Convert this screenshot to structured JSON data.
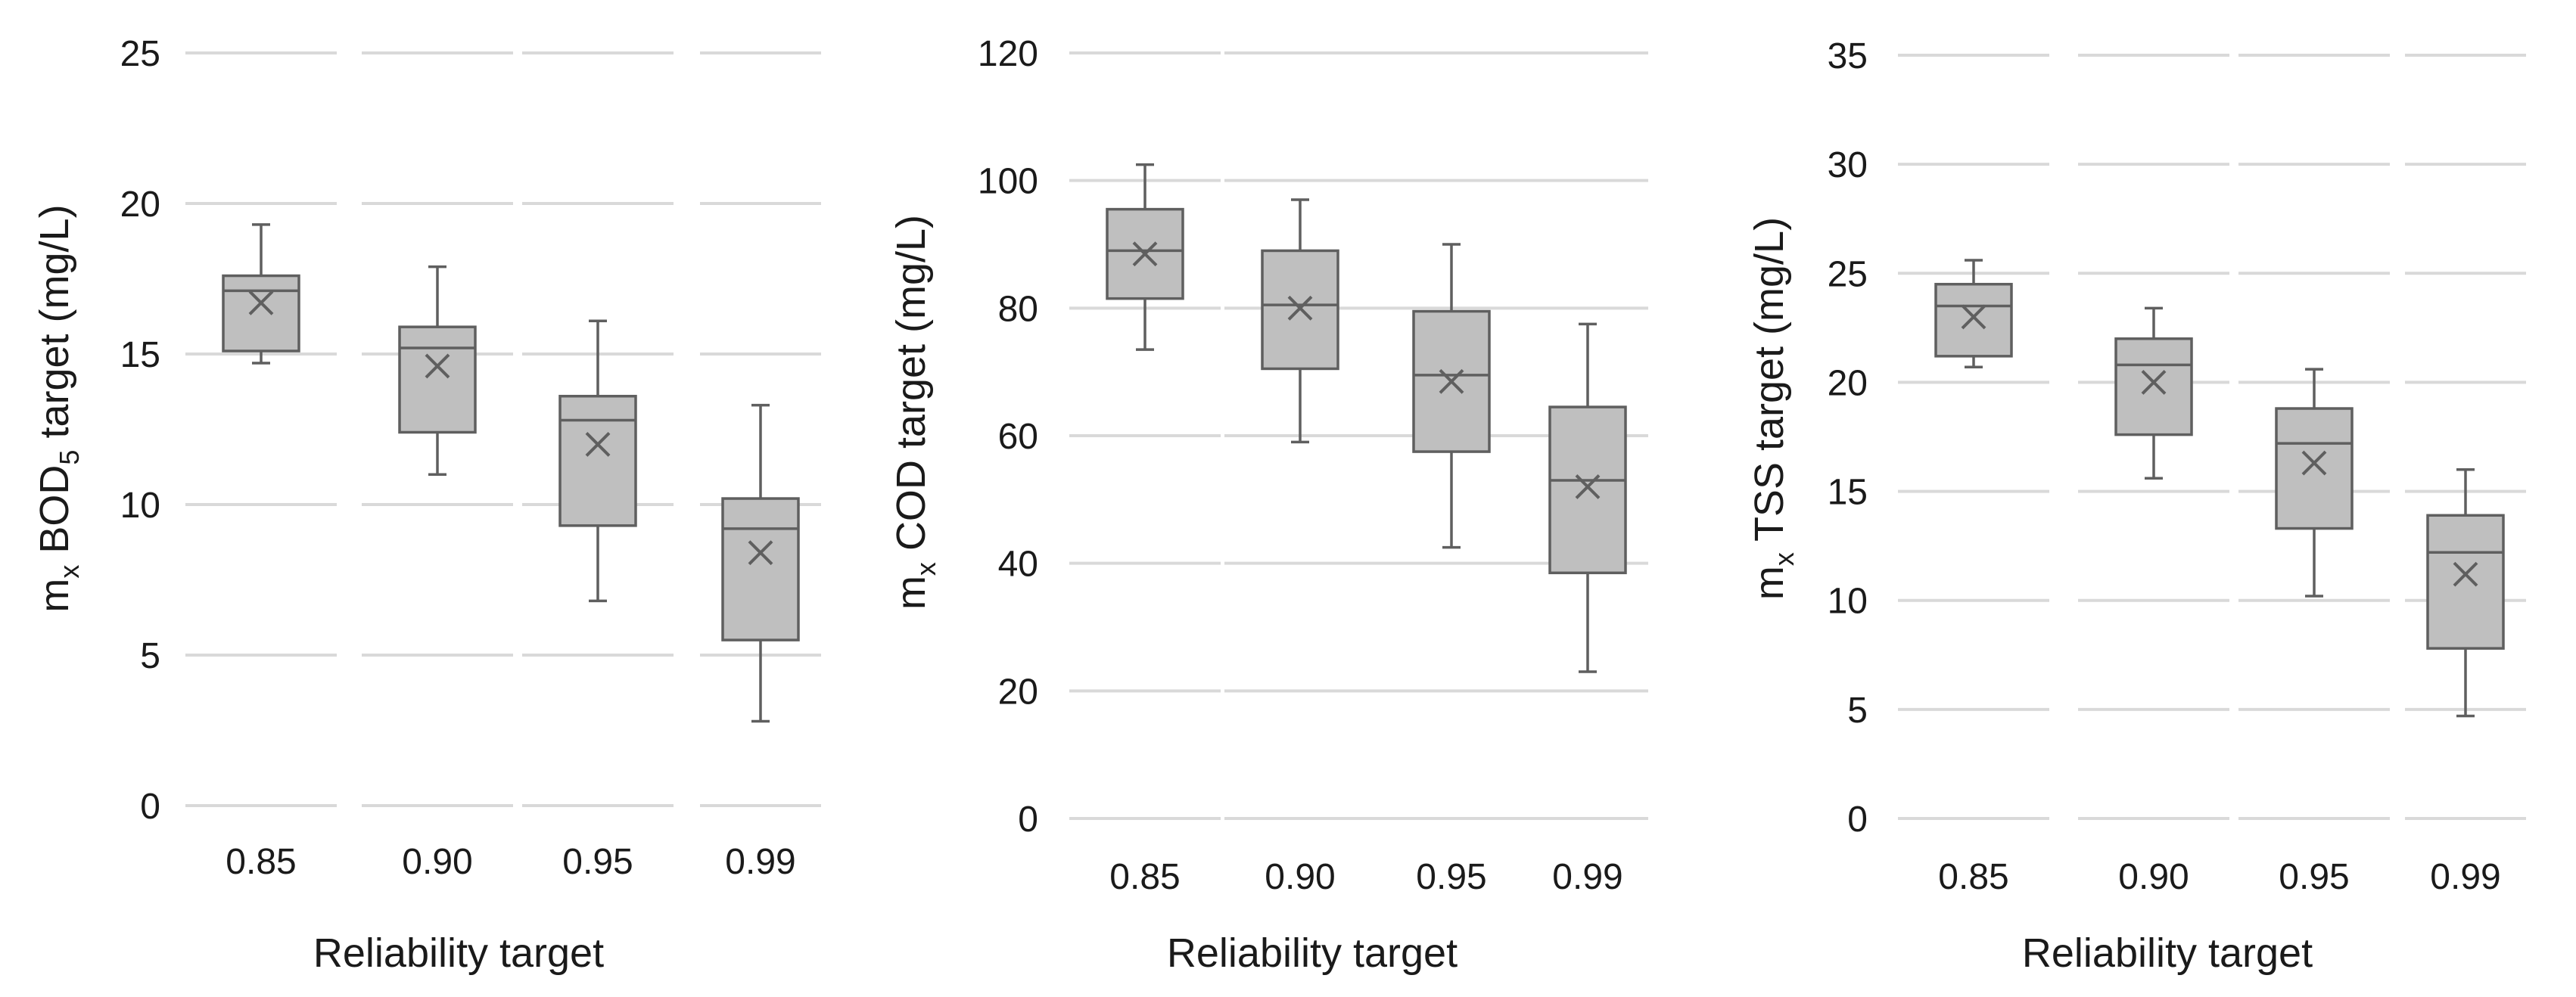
{
  "chart_data": [
    {
      "type": "box",
      "ylabel": {
        "prefix": "m",
        "sub1": "x",
        "mid": " BOD",
        "sub2": "5",
        "suffix": " target (mg/L)"
      },
      "xlabel": "Reliability target",
      "categories": [
        "0.85",
        "0.90",
        "0.95",
        "0.99"
      ],
      "ylim": [
        0,
        25
      ],
      "yticks": [
        0,
        5,
        10,
        15,
        20,
        25
      ],
      "grid": true,
      "boxes": [
        {
          "min": 14.7,
          "q1": 15.1,
          "median": 17.1,
          "q3": 17.6,
          "max": 19.3,
          "mean": 16.7
        },
        {
          "min": 11.0,
          "q1": 12.4,
          "median": 15.2,
          "q3": 15.9,
          "max": 17.9,
          "mean": 14.6
        },
        {
          "min": 6.8,
          "q1": 9.3,
          "median": 12.8,
          "q3": 13.6,
          "max": 16.1,
          "mean": 12.0
        },
        {
          "min": 2.8,
          "q1": 5.5,
          "median": 9.2,
          "q3": 10.2,
          "max": 13.3,
          "mean": 8.4
        }
      ]
    },
    {
      "type": "box",
      "ylabel": {
        "prefix": "m",
        "sub1": "x",
        "mid": " COD target (mg/L)",
        "sub2": "",
        "suffix": ""
      },
      "xlabel": "Reliability target",
      "categories": [
        "0.85",
        "0.90",
        "0.95",
        "0.99"
      ],
      "ylim": [
        0,
        120
      ],
      "yticks": [
        0,
        20,
        40,
        60,
        80,
        100,
        120
      ],
      "grid": true,
      "boxes": [
        {
          "min": 73.5,
          "q1": 81.5,
          "median": 89.0,
          "q3": 95.5,
          "max": 102.5,
          "mean": 88.5
        },
        {
          "min": 59.0,
          "q1": 70.5,
          "median": 80.5,
          "q3": 89.0,
          "max": 97.0,
          "mean": 80.0
        },
        {
          "min": 42.5,
          "q1": 57.5,
          "median": 69.5,
          "q3": 79.5,
          "max": 90.0,
          "mean": 68.5
        },
        {
          "min": 23.0,
          "q1": 38.5,
          "median": 53.0,
          "q3": 64.5,
          "max": 77.5,
          "mean": 52.0
        }
      ]
    },
    {
      "type": "box",
      "ylabel": {
        "prefix": "m",
        "sub1": "x",
        "mid": " TSS target (mg/L)",
        "sub2": "",
        "suffix": ""
      },
      "xlabel": "Reliability target",
      "categories": [
        "0.85",
        "0.90",
        "0.95",
        "0.99"
      ],
      "ylim": [
        0,
        35
      ],
      "yticks": [
        0,
        5,
        10,
        15,
        20,
        25,
        30,
        35
      ],
      "grid": true,
      "boxes": [
        {
          "min": 20.7,
          "q1": 21.2,
          "median": 23.5,
          "q3": 24.5,
          "max": 25.6,
          "mean": 23.0
        },
        {
          "min": 15.6,
          "q1": 17.6,
          "median": 20.8,
          "q3": 22.0,
          "max": 23.4,
          "mean": 20.0
        },
        {
          "min": 10.2,
          "q1": 13.3,
          "median": 17.2,
          "q3": 18.8,
          "max": 20.6,
          "mean": 16.3
        },
        {
          "min": 4.7,
          "q1": 7.8,
          "median": 12.2,
          "q3": 13.9,
          "max": 16.0,
          "mean": 11.2
        }
      ]
    }
  ]
}
